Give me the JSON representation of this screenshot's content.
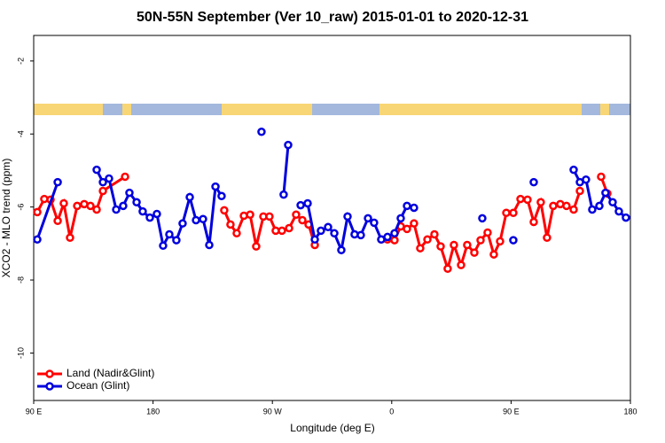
{
  "chart_data": {
    "type": "line",
    "title": "50N-55N September (Ver 10_raw)   2015-01-01 to 2020-12-31",
    "x_label": "Longitude (deg E)",
    "y_label": "XCO2 - MLO trend (ppm)",
    "xlim": [
      90,
      540
    ],
    "ylim": [
      -11.3,
      -1.3
    ],
    "xticks": [
      {
        "value": 90,
        "label": "90 E"
      },
      {
        "value": 180,
        "label": "180"
      },
      {
        "value": 270,
        "label": "90 W"
      },
      {
        "value": 360,
        "label": "0"
      },
      {
        "value": 450,
        "label": "90 E"
      },
      {
        "value": 540,
        "label": "180"
      }
    ],
    "yticks": [
      -2,
      -4,
      -6,
      -8,
      -10
    ],
    "legend": "bottom left",
    "series": [
      {
        "name": "Land (Nadir&Glint)",
        "color": "#ff0000",
        "x": [
          92.7,
          98.0,
          102.7,
          108.1,
          112.7,
          117.4,
          122.8,
          128.1,
          132.8,
          137.5,
          142.2,
          158.9,
          null,
          233.7,
          238.4,
          243.1,
          248.5,
          253.2,
          257.8,
          263.2,
          267.8,
          272.5,
          277.2,
          282.6,
          287.9,
          292.6,
          297.3,
          302.0,
          null,
          352.1,
          356.8,
          362.1,
          366.8,
          371.5,
          376.8,
          381.5,
          386.9,
          392.2,
          396.9,
          402.2,
          406.9,
          412.3,
          416.9,
          422.3,
          427.0,
          432.3,
          437.0,
          441.7,
          446.4,
          451.7,
          457.1,
          462.4,
          467.1,
          472.4,
          477.1,
          481.8,
          487.1,
          491.8,
          497.2,
          501.9,
          null,
          517.9,
          522.6
        ],
        "values": [
          -6.14,
          -5.78,
          -5.8,
          -6.38,
          -5.9,
          -6.84,
          -5.97,
          -5.92,
          -5.97,
          -6.07,
          -5.56,
          -5.17,
          null,
          -6.09,
          -6.48,
          -6.72,
          -6.24,
          -6.21,
          -7.08,
          -6.26,
          -6.26,
          -6.65,
          -6.65,
          -6.58,
          -6.21,
          -6.36,
          -6.48,
          -7.04,
          null,
          -6.89,
          -6.89,
          -6.91,
          -6.53,
          -6.6,
          -6.45,
          -7.13,
          -6.89,
          -6.75,
          -7.08,
          -7.69,
          -7.04,
          -7.59,
          -7.04,
          -7.25,
          -6.91,
          -6.7,
          -7.3,
          -6.94,
          -6.16,
          -6.16,
          -5.78,
          -5.8,
          -6.41,
          -5.87,
          -6.84,
          -5.97,
          -5.92,
          -5.97,
          -6.07,
          -5.56,
          null,
          -5.17,
          -5.63
        ]
      },
      {
        "name": "Ocean (Glint)",
        "color": "#0000dd",
        "x": [
          92.7,
          108.1,
          null,
          137.5,
          142.2,
          146.8,
          152.2,
          157.5,
          162.2,
          167.6,
          172.2,
          177.6,
          182.9,
          187.6,
          192.3,
          197.6,
          202.3,
          207.7,
          212.4,
          217.7,
          222.4,
          227.1,
          231.7,
          null,
          261.8,
          null,
          278.5,
          281.9,
          null,
          291.3,
          296.6,
          302.0,
          306.6,
          312.0,
          316.7,
          322.0,
          326.7,
          332.0,
          336.7,
          342.1,
          346.7,
          352.1,
          356.8,
          362.1,
          366.8,
          371.5,
          376.8,
          null,
          428.3,
          null,
          451.7,
          null,
          467.1,
          null,
          497.2,
          501.9,
          506.5,
          511.2,
          516.6,
          521.2,
          526.6,
          531.3,
          536.6
        ],
        "values": [
          -6.89,
          -5.32,
          null,
          -4.98,
          -5.32,
          -5.22,
          -6.07,
          -5.97,
          -5.61,
          -5.87,
          -6.12,
          -6.29,
          -6.19,
          -7.06,
          -6.75,
          -6.91,
          -6.45,
          -5.73,
          -6.36,
          -6.33,
          -7.04,
          -5.44,
          -5.7,
          null,
          -3.94,
          null,
          -5.66,
          -4.3,
          null,
          -5.95,
          -5.9,
          -6.89,
          -6.65,
          -6.55,
          -6.72,
          -7.18,
          -6.26,
          -6.75,
          -6.77,
          -6.31,
          -6.43,
          -6.89,
          -6.82,
          -6.72,
          -6.31,
          -5.97,
          -6.02,
          null,
          -6.31,
          null,
          -6.91,
          null,
          -5.32,
          null,
          -4.98,
          -5.32,
          -5.25,
          -6.07,
          -5.97,
          -5.61,
          -5.87,
          -6.12,
          -6.29
        ]
      }
    ]
  }
}
